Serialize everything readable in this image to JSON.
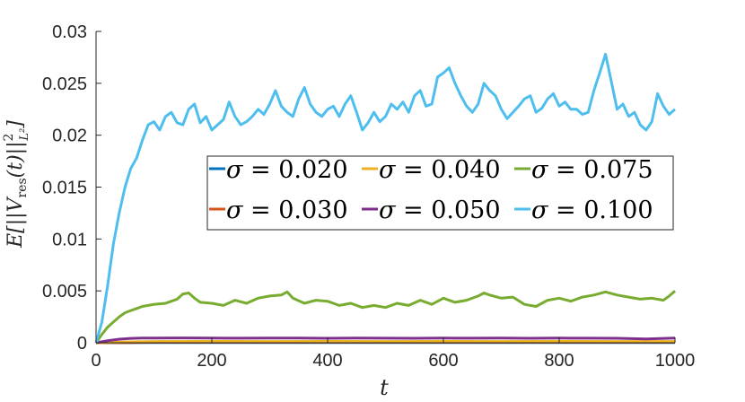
{
  "chart_data": {
    "type": "line",
    "title": "",
    "xlabel": "t",
    "ylabel": "E[||V_res(t)||²_L²]",
    "ylabel_parts": {
      "base": "E[||V",
      "sub": "res",
      "mid": "(t)||",
      "sup": "2",
      "sub2": "L²",
      "end": "]"
    },
    "xlim": [
      0,
      1000
    ],
    "ylim": [
      0,
      0.03
    ],
    "x_ticks": [
      0,
      200,
      400,
      600,
      800,
      1000
    ],
    "x_tick_labels": [
      "0",
      "200",
      "400",
      "600",
      "800",
      "1000"
    ],
    "y_ticks": [
      0,
      0.005,
      0.01,
      0.015,
      0.02,
      0.025,
      0.03
    ],
    "y_tick_labels": [
      "0",
      "0.005",
      "0.01",
      "0.015",
      "0.02",
      "0.025",
      "0.03"
    ],
    "grid": false,
    "legend_position": "center-right",
    "series": [
      {
        "name": "σ = 0.020",
        "color": "#0072BD",
        "x": [
          0,
          50,
          100,
          200,
          300,
          400,
          500,
          600,
          700,
          800,
          900,
          1000
        ],
        "y": [
          0,
          1e-05,
          2e-05,
          2e-05,
          2e-05,
          2e-05,
          2e-05,
          2e-05,
          2e-05,
          2e-05,
          2e-05,
          2e-05
        ]
      },
      {
        "name": "σ = 0.030",
        "color": "#D95319",
        "x": [
          0,
          50,
          100,
          200,
          300,
          400,
          500,
          600,
          700,
          800,
          900,
          1000
        ],
        "y": [
          0,
          3e-05,
          5e-05,
          5e-05,
          5e-05,
          5e-05,
          5e-05,
          5e-05,
          5e-05,
          5e-05,
          5e-05,
          5e-05
        ]
      },
      {
        "name": "σ = 0.040",
        "color": "#EDB120",
        "x": [
          0,
          50,
          100,
          200,
          300,
          400,
          500,
          600,
          700,
          800,
          900,
          1000
        ],
        "y": [
          0,
          8e-05,
          0.00012,
          0.00013,
          0.00012,
          0.00013,
          0.00012,
          0.00013,
          0.00012,
          0.00013,
          0.00012,
          0.00012
        ]
      },
      {
        "name": "σ = 0.050",
        "color": "#7E2F8E",
        "x": [
          0,
          20,
          40,
          60,
          80,
          100,
          150,
          200,
          250,
          300,
          350,
          400,
          450,
          500,
          550,
          600,
          650,
          700,
          750,
          800,
          850,
          900,
          950,
          1000
        ],
        "y": [
          0,
          0.0002,
          0.00035,
          0.00042,
          0.00045,
          0.00046,
          0.00047,
          0.00045,
          0.00044,
          0.00046,
          0.00045,
          0.00043,
          0.00046,
          0.00044,
          0.00043,
          0.00045,
          0.00044,
          0.00046,
          0.00043,
          0.00045,
          0.00044,
          0.00043,
          0.00036,
          0.00045
        ]
      },
      {
        "name": "σ = 0.075",
        "color": "#77AC30",
        "x": [
          0,
          10,
          20,
          30,
          40,
          50,
          60,
          70,
          80,
          100,
          120,
          140,
          150,
          160,
          170,
          180,
          200,
          220,
          240,
          260,
          280,
          300,
          320,
          330,
          340,
          360,
          380,
          400,
          420,
          440,
          460,
          480,
          500,
          520,
          540,
          560,
          580,
          600,
          620,
          640,
          660,
          670,
          680,
          700,
          720,
          740,
          760,
          780,
          800,
          820,
          840,
          860,
          880,
          900,
          920,
          940,
          960,
          980,
          990,
          1000
        ],
        "y": [
          0,
          0.0008,
          0.0015,
          0.002,
          0.0025,
          0.0029,
          0.0031,
          0.0033,
          0.0035,
          0.0037,
          0.0038,
          0.0042,
          0.0047,
          0.0048,
          0.0043,
          0.0039,
          0.0038,
          0.0036,
          0.0041,
          0.0038,
          0.0043,
          0.0045,
          0.0046,
          0.0049,
          0.0043,
          0.0038,
          0.0041,
          0.004,
          0.0036,
          0.0038,
          0.0034,
          0.0036,
          0.0034,
          0.0038,
          0.0036,
          0.0041,
          0.0037,
          0.0043,
          0.0039,
          0.0041,
          0.0045,
          0.0048,
          0.0046,
          0.0043,
          0.0044,
          0.0037,
          0.0035,
          0.0041,
          0.0043,
          0.004,
          0.0044,
          0.0046,
          0.0049,
          0.0046,
          0.0044,
          0.0042,
          0.0043,
          0.0041,
          0.0045,
          0.005
        ]
      },
      {
        "name": "σ = 0.100",
        "color": "#4DBEEE",
        "x": [
          0,
          10,
          20,
          30,
          40,
          50,
          60,
          70,
          80,
          90,
          100,
          110,
          120,
          130,
          140,
          150,
          160,
          170,
          180,
          190,
          200,
          210,
          220,
          230,
          240,
          250,
          260,
          270,
          280,
          290,
          300,
          310,
          320,
          330,
          340,
          350,
          360,
          370,
          380,
          390,
          400,
          410,
          420,
          430,
          440,
          450,
          460,
          470,
          480,
          490,
          500,
          510,
          520,
          530,
          540,
          550,
          560,
          570,
          580,
          590,
          600,
          610,
          620,
          630,
          640,
          650,
          660,
          670,
          680,
          690,
          700,
          710,
          720,
          730,
          740,
          750,
          760,
          770,
          780,
          790,
          800,
          810,
          820,
          830,
          840,
          850,
          860,
          870,
          880,
          890,
          900,
          910,
          920,
          930,
          940,
          950,
          960,
          970,
          980,
          990,
          1000
        ],
        "y": [
          0,
          0.002,
          0.0055,
          0.0095,
          0.0125,
          0.015,
          0.0168,
          0.0178,
          0.0195,
          0.021,
          0.0213,
          0.0205,
          0.0218,
          0.0222,
          0.0212,
          0.021,
          0.0225,
          0.023,
          0.0212,
          0.0218,
          0.0205,
          0.021,
          0.0215,
          0.0232,
          0.0218,
          0.021,
          0.0213,
          0.0218,
          0.0225,
          0.022,
          0.023,
          0.0243,
          0.0228,
          0.0222,
          0.0218,
          0.0235,
          0.0246,
          0.023,
          0.0222,
          0.0218,
          0.0225,
          0.0228,
          0.0218,
          0.023,
          0.0238,
          0.0222,
          0.0205,
          0.0212,
          0.0222,
          0.0213,
          0.0218,
          0.023,
          0.0225,
          0.0232,
          0.0222,
          0.0238,
          0.0243,
          0.0228,
          0.023,
          0.0256,
          0.026,
          0.0265,
          0.025,
          0.0238,
          0.0228,
          0.0222,
          0.023,
          0.025,
          0.0243,
          0.0238,
          0.0225,
          0.0216,
          0.0222,
          0.0228,
          0.0235,
          0.0238,
          0.0222,
          0.0226,
          0.0235,
          0.024,
          0.0228,
          0.0232,
          0.0225,
          0.0225,
          0.022,
          0.0222,
          0.0243,
          0.026,
          0.0278,
          0.0252,
          0.0225,
          0.023,
          0.0218,
          0.0222,
          0.021,
          0.0205,
          0.0213,
          0.024,
          0.0228,
          0.022,
          0.0225
        ]
      }
    ]
  }
}
